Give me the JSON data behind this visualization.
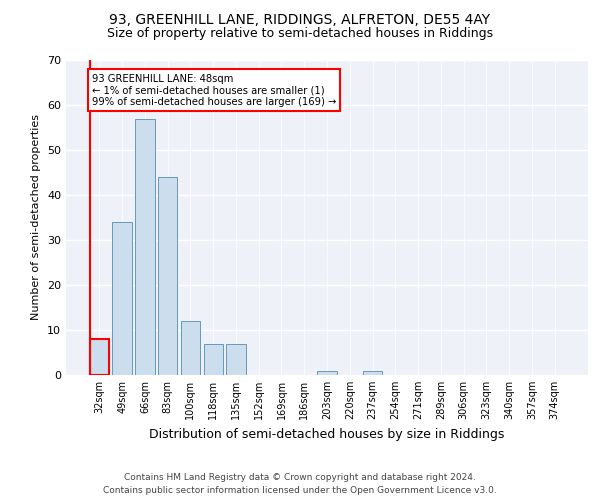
{
  "title1": "93, GREENHILL LANE, RIDDINGS, ALFRETON, DE55 4AY",
  "title2": "Size of property relative to semi-detached houses in Riddings",
  "xlabel": "Distribution of semi-detached houses by size in Riddings",
  "ylabel": "Number of semi-detached properties",
  "footnote": "Contains HM Land Registry data © Crown copyright and database right 2024.\nContains public sector information licensed under the Open Government Licence v3.0.",
  "categories": [
    "32sqm",
    "49sqm",
    "66sqm",
    "83sqm",
    "100sqm",
    "118sqm",
    "135sqm",
    "152sqm",
    "169sqm",
    "186sqm",
    "203sqm",
    "220sqm",
    "237sqm",
    "254sqm",
    "271sqm",
    "289sqm",
    "306sqm",
    "323sqm",
    "340sqm",
    "357sqm",
    "374sqm"
  ],
  "values": [
    8,
    34,
    57,
    44,
    12,
    7,
    7,
    0,
    0,
    0,
    1,
    0,
    1,
    0,
    0,
    0,
    0,
    0,
    0,
    0,
    0
  ],
  "bar_color": "#ccdded",
  "bar_edge_color": "#6699bb",
  "highlight_bar_index": 0,
  "highlight_bar_edge_color": "red",
  "annotation_text": "93 GREENHILL LANE: 48sqm\n← 1% of semi-detached houses are smaller (1)\n99% of semi-detached houses are larger (169) →",
  "annotation_box_color": "white",
  "annotation_box_edge_color": "red",
  "property_line_color": "red",
  "ylim": [
    0,
    70
  ],
  "yticks": [
    0,
    10,
    20,
    30,
    40,
    50,
    60,
    70
  ],
  "bg_color": "#eef2f8",
  "grid_color": "white",
  "title1_fontsize": 10,
  "title2_fontsize": 9,
  "xlabel_fontsize": 9,
  "ylabel_fontsize": 8,
  "footnote_fontsize": 6.5,
  "tick_fontsize": 7
}
